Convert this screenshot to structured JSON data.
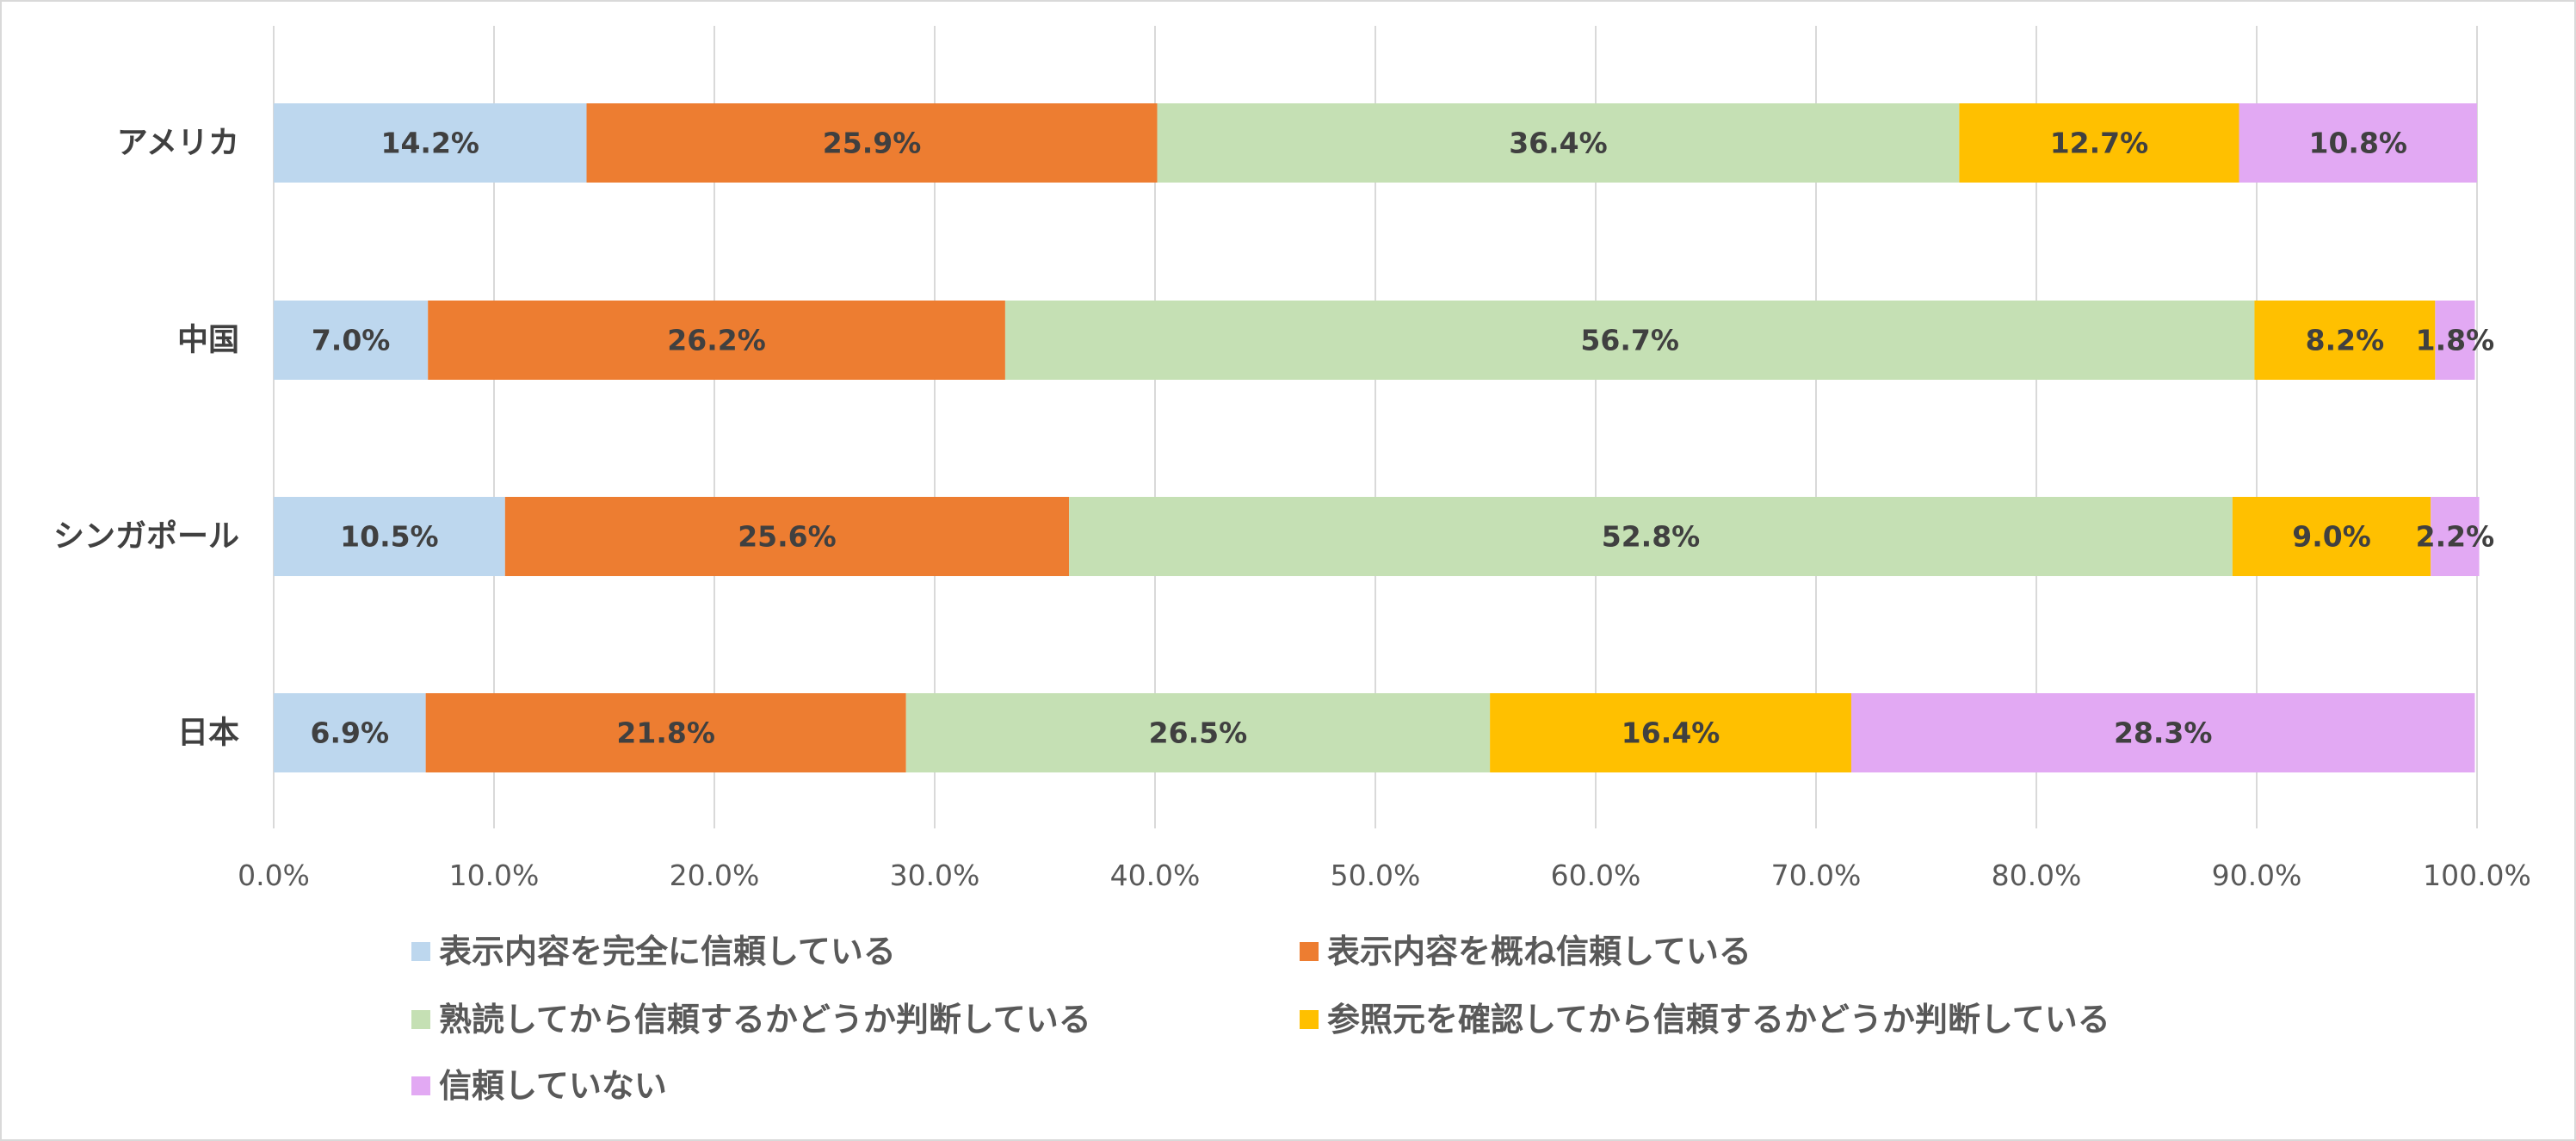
{
  "chart_data": {
    "type": "bar",
    "orientation": "horizontal",
    "stacked": "percent",
    "categories": [
      "アメリカ",
      "中国",
      "シンガポール",
      "日本"
    ],
    "series": [
      {
        "name": "表示内容を完全に信頼している",
        "color": "#BDD7EE",
        "values": [
          14.2,
          7.0,
          10.5,
          6.9
        ]
      },
      {
        "name": "表示内容を概ね信頼している",
        "color": "#ED7D31",
        "values": [
          25.9,
          26.2,
          25.6,
          21.8
        ]
      },
      {
        "name": "熟読してから信頼するかどうか判断している",
        "color": "#C5E0B4",
        "values": [
          36.4,
          56.7,
          52.8,
          26.5
        ]
      },
      {
        "name": "参照元を確認してから信頼するかどうか判断している",
        "color": "#FFC000",
        "values": [
          12.7,
          8.2,
          9.0,
          16.4
        ]
      },
      {
        "name": "信頼していない",
        "color": "#E2A9F3",
        "values": [
          10.8,
          1.8,
          2.2,
          28.3
        ]
      }
    ],
    "data_labels": [
      [
        "14.2%",
        "25.9%",
        "36.4%",
        "12.7%",
        "10.8%"
      ],
      [
        "7.0%",
        "26.2%",
        "56.7%",
        "8.2%",
        "1.8%"
      ],
      [
        "10.5%",
        "25.6%",
        "52.8%",
        "9.0%",
        "2.2%"
      ],
      [
        "6.9%",
        "21.8%",
        "26.5%",
        "16.4%",
        "28.3%"
      ]
    ],
    "x_ticks": [
      "0.0%",
      "10.0%",
      "20.0%",
      "30.0%",
      "40.0%",
      "50.0%",
      "60.0%",
      "70.0%",
      "80.0%",
      "90.0%",
      "100.0%"
    ],
    "xlim": [
      0,
      100
    ],
    "grid": true,
    "legend_position": "bottom"
  }
}
